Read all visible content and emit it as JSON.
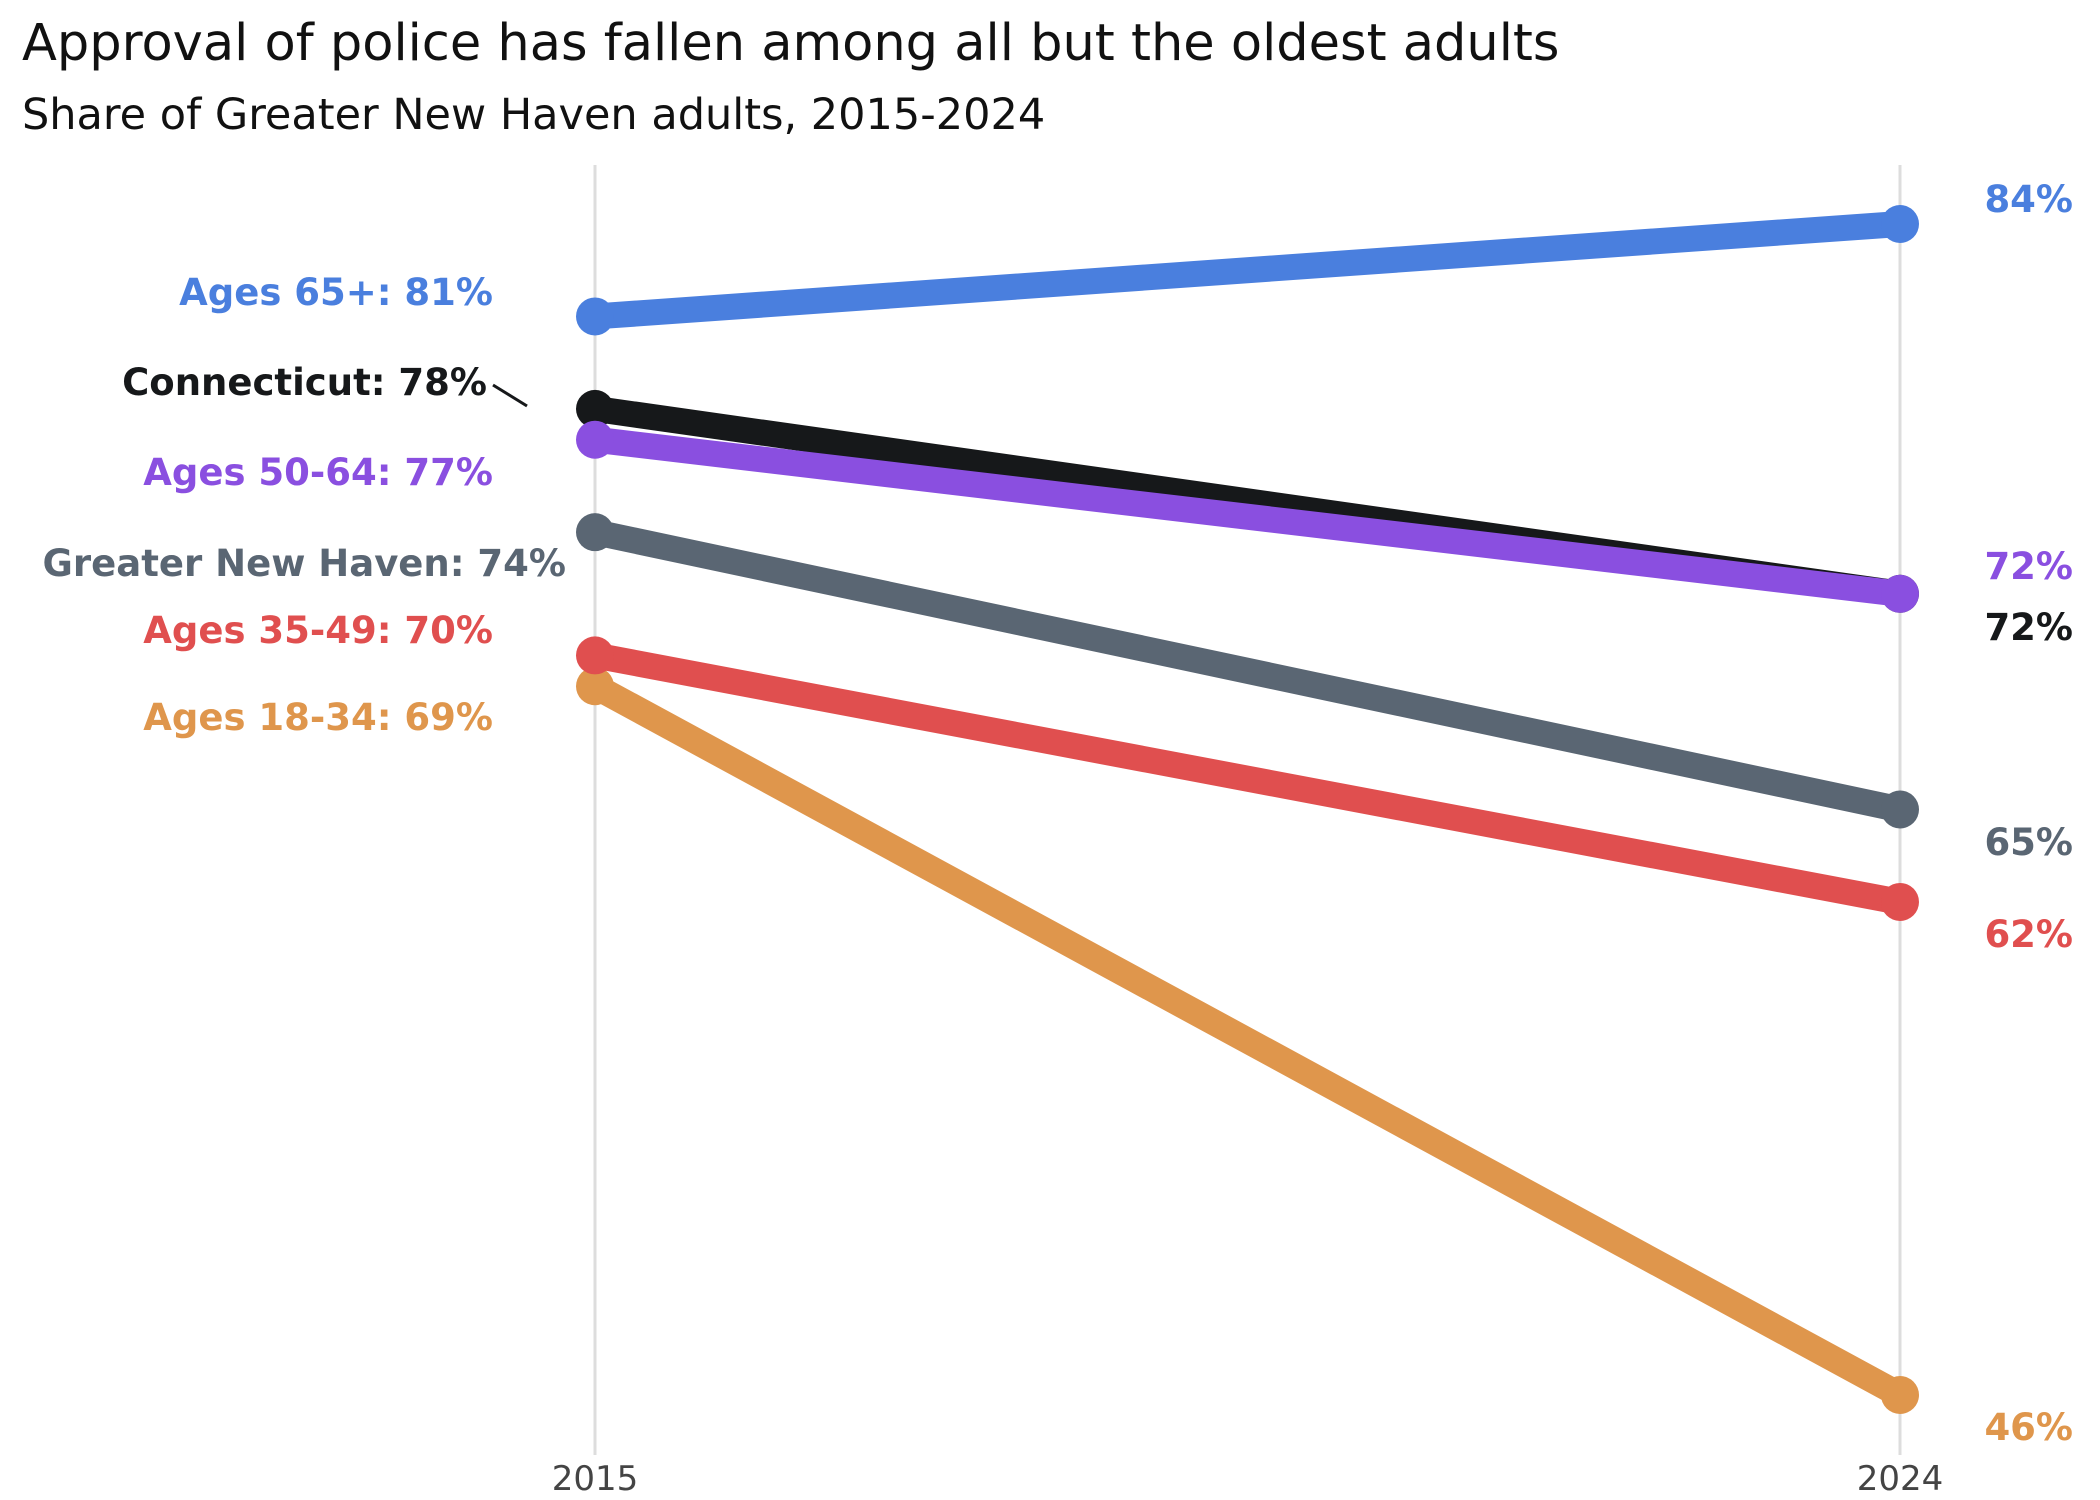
{
  "chart_data": {
    "type": "line",
    "title": "Approval of police has fallen among all but the oldest adults",
    "subtitle": "Share of Greater New Haven adults, 2015-2024",
    "x": [
      "2015",
      "2024"
    ],
    "ylim": [
      44,
      86
    ],
    "grid": "vertical lines at each year",
    "legend": "none (direct labels)",
    "series": [
      {
        "name": "Ages 65+",
        "values": [
          81,
          84
        ],
        "color": "#4a7fde",
        "start_label": "Ages 65+: 81%",
        "end_label": "84%"
      },
      {
        "name": "Connecticut",
        "values": [
          78,
          72
        ],
        "color": "#16181a",
        "start_label": "Connecticut: 78%",
        "end_label": "72%"
      },
      {
        "name": "Ages 50-64",
        "values": [
          77,
          72
        ],
        "color": "#8a4fe0",
        "start_label": "Ages 50-64: 77%",
        "end_label": "72%"
      },
      {
        "name": "Greater New Haven",
        "values": [
          74,
          65
        ],
        "color": "#5a6673",
        "start_label": "Greater New Haven: 74%",
        "end_label": "65%"
      },
      {
        "name": "Ages 35-49",
        "values": [
          70,
          62
        ],
        "color": "#e04f4f",
        "start_label": "Ages 35-49: 70%",
        "end_label": "62%"
      },
      {
        "name": "Ages 18-34",
        "values": [
          69,
          46
        ],
        "color": "#df964c",
        "start_label": "Ages 18-34: 69%",
        "end_label": "46%"
      }
    ]
  }
}
